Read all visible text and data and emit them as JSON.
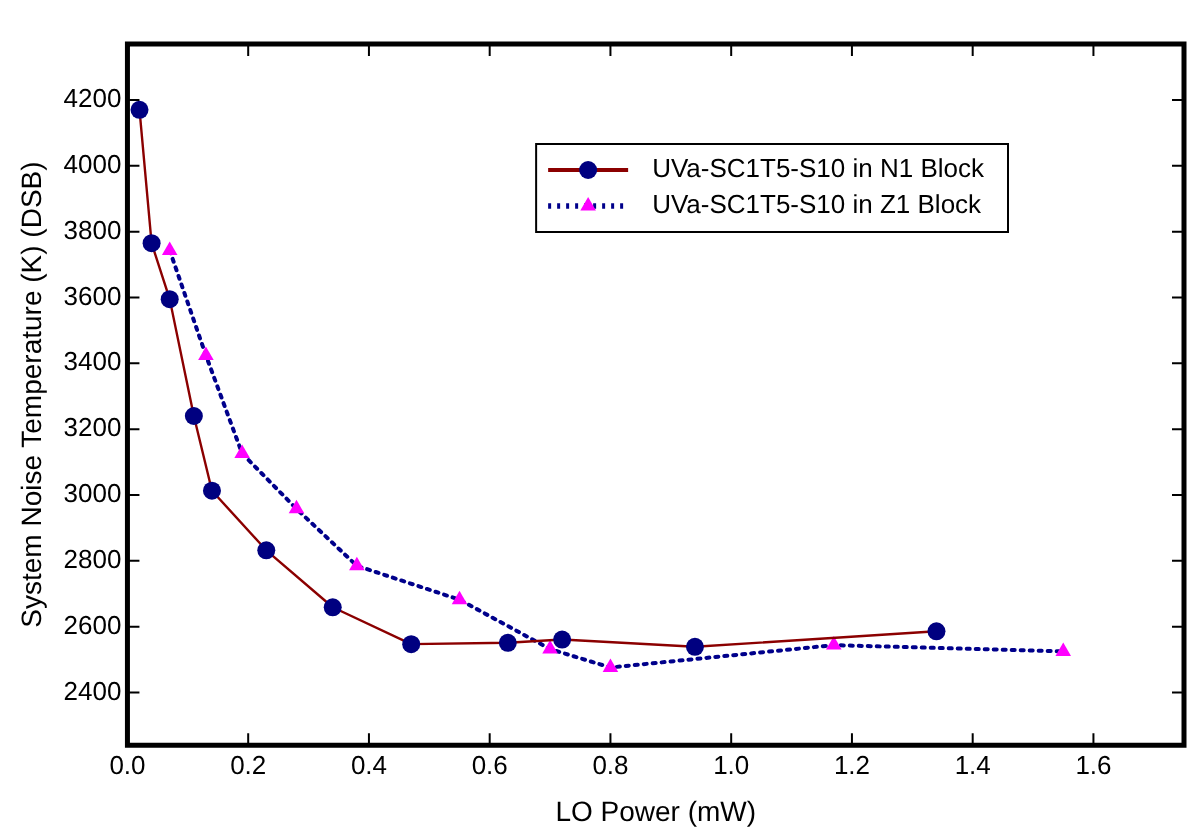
{
  "chart_data": {
    "type": "line",
    "xlabel": "LO Power (mW)",
    "ylabel": "System Noise Temperature (K) (DSB)",
    "xlim": [
      0,
      1.75
    ],
    "xticks": [
      {
        "value": 0,
        "label": "0.0"
      },
      0.2,
      0.4,
      0.6,
      0.8,
      {
        "value": 1,
        "label": "1.0"
      },
      1.2,
      1.4,
      1.6
    ],
    "ylim": [
      2240,
      4370
    ],
    "yticks": [
      2400,
      2600,
      2800,
      3000,
      3200,
      3400,
      3600,
      3800,
      4000,
      4200
    ],
    "grid": false,
    "legend": "top right",
    "series": [
      {
        "name": "UVa-SC1T5-S10 in N1 Block",
        "color": "#8b0000",
        "marker": "circle",
        "line_style": "solid",
        "x": [
          0.02,
          0.04,
          0.07,
          0.11,
          0.14,
          0.23,
          0.34,
          0.47,
          0.63,
          0.72,
          0.94,
          1.34
        ],
        "values": [
          4170,
          3765,
          3595,
          3240,
          3013,
          2832,
          2659,
          2547,
          2551,
          2561,
          2539,
          2586
        ]
      },
      {
        "name": "UVa-SC1T5-S10 in Z1 Block",
        "color": "#00008b",
        "marker": "triangle",
        "line_style": "dotted",
        "x": [
          0.07,
          0.13,
          0.19,
          0.28,
          0.38,
          0.55,
          0.7,
          0.8,
          1.17,
          1.55
        ],
        "values": [
          3743,
          3424,
          3126,
          2958,
          2785,
          2682,
          2532,
          2476,
          2544,
          2525
        ]
      }
    ]
  }
}
